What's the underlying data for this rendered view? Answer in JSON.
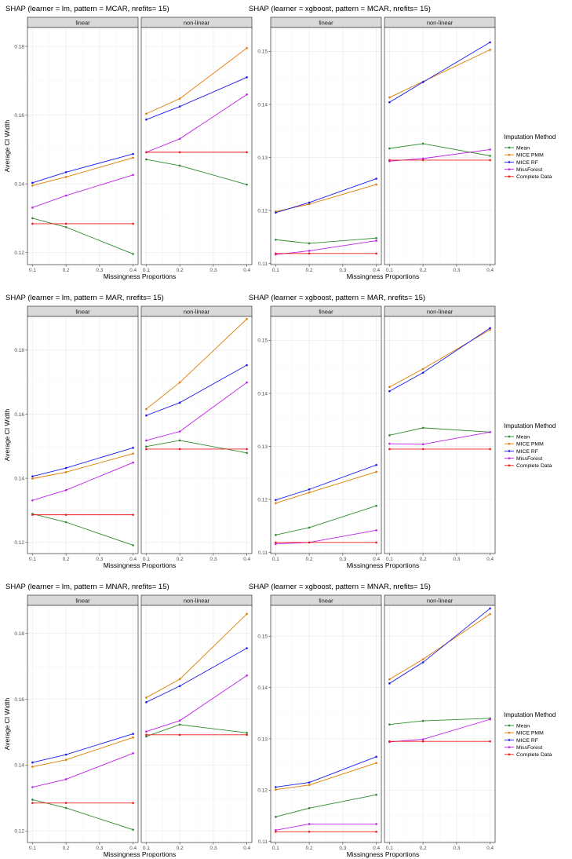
{
  "legend": {
    "title": "Imputation Method",
    "items": [
      {
        "name": "Mean",
        "color": "#2e8b2e"
      },
      {
        "name": "MICE PMM",
        "color": "#e07b00"
      },
      {
        "name": "MICE RF",
        "color": "#1a1aee"
      },
      {
        "name": "MissForest",
        "color": "#c020e8"
      },
      {
        "name": "Complete Data",
        "color": "#ee1a1a"
      }
    ]
  },
  "chart_data": [
    {
      "type": "line",
      "title": "SHAP (learner = lm, pattern = MCAR, nrefits= 15)",
      "xlabel": "Missingness Proportions",
      "ylabel": "Average CI Width",
      "x": [
        0.1,
        0.2,
        0.4
      ],
      "xticks": [
        "0.1",
        "0.2",
        "0.3",
        "0.4"
      ],
      "ylim": [
        0.1165,
        0.1855
      ],
      "yticks": [
        "0.12",
        "0.14",
        "0.16",
        "0.18"
      ],
      "facets": [
        {
          "label": "linear",
          "series": [
            {
              "name": "Mean",
              "values": [
                0.13,
                0.1274,
                0.1196
              ]
            },
            {
              "name": "MICE PMM",
              "values": [
                0.1395,
                0.142,
                0.1476
              ]
            },
            {
              "name": "MICE RF",
              "values": [
                0.1403,
                0.1434,
                0.1487
              ]
            },
            {
              "name": "MissForest",
              "values": [
                0.1331,
                0.1366,
                0.1426
              ]
            },
            {
              "name": "Complete Data",
              "values": [
                0.1284,
                0.1284,
                0.1284
              ]
            }
          ]
        },
        {
          "label": "non-linear",
          "series": [
            {
              "name": "Mean",
              "values": [
                0.1471,
                0.1453,
                0.1398
              ]
            },
            {
              "name": "MICE PMM",
              "values": [
                0.1604,
                0.1648,
                0.1795
              ]
            },
            {
              "name": "MICE RF",
              "values": [
                0.1587,
                0.1625,
                0.171
              ]
            },
            {
              "name": "MissForest",
              "values": [
                0.1492,
                0.1531,
                0.166
              ]
            },
            {
              "name": "Complete Data",
              "values": [
                0.1492,
                0.1492,
                0.1492
              ]
            }
          ]
        }
      ]
    },
    {
      "type": "line",
      "title": "SHAP (learner = xgboost, pattern = MCAR, nrefits= 15)",
      "xlabel": "Missingness Proportions",
      "ylabel": "",
      "x": [
        0.1,
        0.2,
        0.4
      ],
      "xticks": [
        "0.1",
        "0.2",
        "0.3",
        "0.4"
      ],
      "ylim": [
        0.1098,
        0.1545
      ],
      "yticks": [
        "0.11",
        "0.12",
        "0.13",
        "0.14",
        "0.15"
      ],
      "facets": [
        {
          "label": "linear",
          "series": [
            {
              "name": "Mean",
              "values": [
                0.1145,
                0.1138,
                0.1148
              ]
            },
            {
              "name": "MICE PMM",
              "values": [
                0.1198,
                0.1212,
                0.1249
              ]
            },
            {
              "name": "MICE RF",
              "values": [
                0.1196,
                0.1215,
                0.126
              ]
            },
            {
              "name": "MissForest",
              "values": [
                0.1117,
                0.1124,
                0.1143
              ]
            },
            {
              "name": "Complete Data",
              "values": [
                0.1119,
                0.1119,
                0.1119
              ]
            }
          ]
        },
        {
          "label": "non-linear",
          "series": [
            {
              "name": "Mean",
              "values": [
                0.1317,
                0.1326,
                0.1303
              ]
            },
            {
              "name": "MICE PMM",
              "values": [
                0.1413,
                0.1443,
                0.1503
              ]
            },
            {
              "name": "MICE RF",
              "values": [
                0.1404,
                0.1442,
                0.1517
              ]
            },
            {
              "name": "MissForest",
              "values": [
                0.1293,
                0.1298,
                0.1315
              ]
            },
            {
              "name": "Complete Data",
              "values": [
                0.1295,
                0.1295,
                0.1295
              ]
            }
          ]
        }
      ]
    },
    {
      "type": "line",
      "title": "SHAP (learner = lm, pattern = MAR, nrefits= 15)",
      "xlabel": "Missingness Proportions",
      "ylabel": "Average CI Width",
      "x": [
        0.1,
        0.2,
        0.4
      ],
      "xticks": [
        "0.1",
        "0.2",
        "0.3",
        "0.4"
      ],
      "ylim": [
        0.1165,
        0.1905
      ],
      "yticks": [
        "0.12",
        "0.14",
        "0.16",
        "0.18"
      ],
      "facets": [
        {
          "label": "linear",
          "series": [
            {
              "name": "Mean",
              "values": [
                0.1289,
                0.1263,
                0.1191
              ]
            },
            {
              "name": "MICE PMM",
              "values": [
                0.1399,
                0.1419,
                0.1477
              ]
            },
            {
              "name": "MICE RF",
              "values": [
                0.1406,
                0.1432,
                0.1495
              ]
            },
            {
              "name": "MissForest",
              "values": [
                0.1331,
                0.1363,
                0.1449
              ]
            },
            {
              "name": "Complete Data",
              "values": [
                0.1286,
                0.1286,
                0.1286
              ]
            }
          ]
        },
        {
          "label": "non-linear",
          "series": [
            {
              "name": "Mean",
              "values": [
                0.1499,
                0.1518,
                0.1479
              ]
            },
            {
              "name": "MICE PMM",
              "values": [
                0.1616,
                0.1699,
                0.1897
              ]
            },
            {
              "name": "MICE RF",
              "values": [
                0.1596,
                0.1636,
                0.1753
              ]
            },
            {
              "name": "MissForest",
              "values": [
                0.1518,
                0.1546,
                0.1699
              ]
            },
            {
              "name": "Complete Data",
              "values": [
                0.1491,
                0.1491,
                0.1491
              ]
            }
          ]
        }
      ]
    },
    {
      "type": "line",
      "title": "SHAP (learner = xgboost, pattern = MAR, nrefits= 15)",
      "xlabel": "Missingness Proportions",
      "ylabel": "",
      "x": [
        0.1,
        0.2,
        0.4
      ],
      "xticks": [
        "0.1",
        "0.2",
        "0.3",
        "0.4"
      ],
      "ylim": [
        0.1098,
        0.1545
      ],
      "yticks": [
        "0.11",
        "0.12",
        "0.13",
        "0.14",
        "0.15"
      ],
      "facets": [
        {
          "label": "linear",
          "series": [
            {
              "name": "Mean",
              "values": [
                0.1133,
                0.1147,
                0.1188
              ]
            },
            {
              "name": "MICE PMM",
              "values": [
                0.1193,
                0.1213,
                0.1252
              ]
            },
            {
              "name": "MICE RF",
              "values": [
                0.1199,
                0.1219,
                0.1265
              ]
            },
            {
              "name": "MissForest",
              "values": [
                0.1116,
                0.1119,
                0.1142
              ]
            },
            {
              "name": "Complete Data",
              "values": [
                0.1119,
                0.1119,
                0.1119
              ]
            }
          ]
        },
        {
          "label": "non-linear",
          "series": [
            {
              "name": "Mean",
              "values": [
                0.1321,
                0.1335,
                0.1327
              ]
            },
            {
              "name": "MICE PMM",
              "values": [
                0.1412,
                0.1446,
                0.152
              ]
            },
            {
              "name": "MICE RF",
              "values": [
                0.1404,
                0.1439,
                0.1523
              ]
            },
            {
              "name": "MissForest",
              "values": [
                0.1305,
                0.1304,
                0.1327
              ]
            },
            {
              "name": "Complete Data",
              "values": [
                0.1295,
                0.1295,
                0.1295
              ]
            }
          ]
        }
      ]
    },
    {
      "type": "line",
      "title": "SHAP (learner = lm, pattern = MNAR, nrefits= 15)",
      "xlabel": "Missingness Proportions",
      "ylabel": "Average CI Width",
      "x": [
        0.1,
        0.2,
        0.4
      ],
      "xticks": [
        "0.1",
        "0.2",
        "0.3",
        "0.4"
      ],
      "ylim": [
        0.1165,
        0.1885
      ],
      "yticks": [
        "0.12",
        "0.14",
        "0.16",
        "0.18"
      ],
      "facets": [
        {
          "label": "linear",
          "series": [
            {
              "name": "Mean",
              "values": [
                0.1295,
                0.127,
                0.1204
              ]
            },
            {
              "name": "MICE PMM",
              "values": [
                0.1395,
                0.1416,
                0.1484
              ]
            },
            {
              "name": "MICE RF",
              "values": [
                0.1408,
                0.1432,
                0.1495
              ]
            },
            {
              "name": "MissForest",
              "values": [
                0.1333,
                0.1357,
                0.1436
              ]
            },
            {
              "name": "Complete Data",
              "values": [
                0.1285,
                0.1285,
                0.1285
              ]
            }
          ]
        },
        {
          "label": "non-linear",
          "series": [
            {
              "name": "Mean",
              "values": [
                0.1487,
                0.1523,
                0.1498
              ]
            },
            {
              "name": "MICE PMM",
              "values": [
                0.1605,
                0.1661,
                0.1859
              ]
            },
            {
              "name": "MICE RF",
              "values": [
                0.1591,
                0.164,
                0.1755
              ]
            },
            {
              "name": "MissForest",
              "values": [
                0.1502,
                0.1535,
                0.1672
              ]
            },
            {
              "name": "Complete Data",
              "values": [
                0.1492,
                0.1492,
                0.1492
              ]
            }
          ]
        }
      ]
    },
    {
      "type": "line",
      "title": "SHAP (learner = xgboost, pattern = MNAR, nrefits= 15)",
      "xlabel": "Missingness Proportions",
      "ylabel": "",
      "x": [
        0.1,
        0.2,
        0.4
      ],
      "xticks": [
        "0.1",
        "0.2",
        "0.3",
        "0.4"
      ],
      "ylim": [
        0.1098,
        0.156
      ],
      "yticks": [
        "0.11",
        "0.12",
        "0.13",
        "0.14",
        "0.15"
      ],
      "facets": [
        {
          "label": "linear",
          "series": [
            {
              "name": "Mean",
              "values": [
                0.1148,
                0.1165,
                0.1191
              ]
            },
            {
              "name": "MICE PMM",
              "values": [
                0.1201,
                0.121,
                0.1253
              ]
            },
            {
              "name": "MICE RF",
              "values": [
                0.1206,
                0.1215,
                0.1265
              ]
            },
            {
              "name": "MissForest",
              "values": [
                0.1122,
                0.1134,
                0.1134
              ]
            },
            {
              "name": "Complete Data",
              "values": [
                0.1119,
                0.1119,
                0.1119
              ]
            }
          ]
        },
        {
          "label": "non-linear",
          "series": [
            {
              "name": "Mean",
              "values": [
                0.1328,
                0.1335,
                0.134
              ]
            },
            {
              "name": "MICE PMM",
              "values": [
                0.1416,
                0.1455,
                0.1543
              ]
            },
            {
              "name": "MICE RF",
              "values": [
                0.1408,
                0.1449,
                0.1554
              ]
            },
            {
              "name": "MissForest",
              "values": [
                0.1294,
                0.1299,
                0.1338
              ]
            },
            {
              "name": "Complete Data",
              "values": [
                0.1295,
                0.1295,
                0.1295
              ]
            }
          ]
        }
      ]
    }
  ]
}
